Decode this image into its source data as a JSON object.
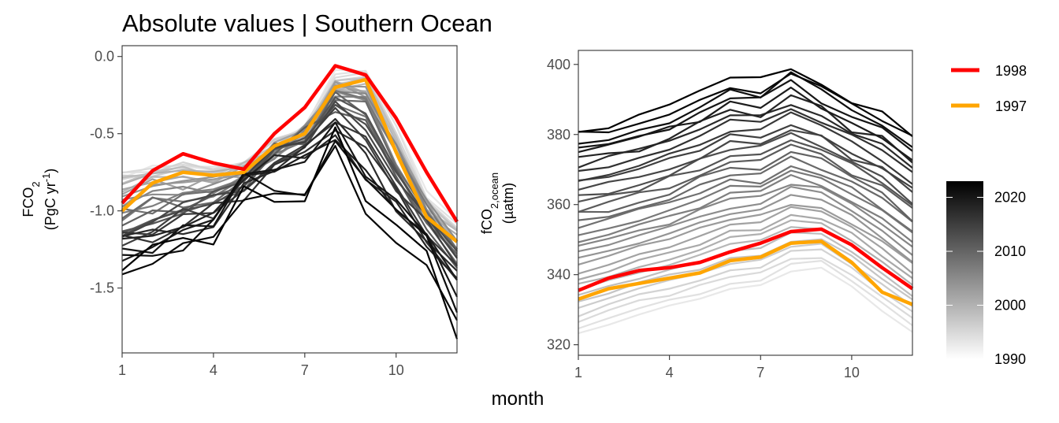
{
  "title": "Absolute values | Southern Ocean",
  "xlabel": "month",
  "legend": {
    "highlight": [
      {
        "name": "1998",
        "color": "#ff0000"
      },
      {
        "name": "1997",
        "color": "#ffa500"
      }
    ],
    "colorbar": {
      "labels": [
        "2020",
        "2010",
        "2000",
        "1990"
      ],
      "values": [
        2020,
        2010,
        2000,
        1990
      ],
      "range": [
        1990,
        2023
      ]
    }
  },
  "chart_data": [
    {
      "type": "line",
      "ylabel_main": "FCO",
      "ylabel_sub": "2",
      "ylabel_unit_pre": "(PgC yr",
      "ylabel_unit_sup": "-1",
      "ylabel_unit_post": ")",
      "xlim": [
        1,
        12
      ],
      "ylim": [
        -1.92,
        0.07
      ],
      "x_ticks": [
        1,
        4,
        7,
        10
      ],
      "x_tick_labels": [
        "1",
        "4",
        "7",
        "10"
      ],
      "y_ticks": [
        0.0,
        -0.5,
        -1.0,
        -1.5
      ],
      "y_tick_labels": [
        "0.0",
        "-0.5",
        "-1.0",
        "-1.5"
      ],
      "x": [
        1,
        2,
        3,
        4,
        5,
        6,
        7,
        8,
        9,
        10,
        11,
        12
      ],
      "background_anchors": {
        "years": [
          1990,
          1996,
          2003,
          2010,
          2016,
          2020,
          2023
        ],
        "profiles": [
          [
            -0.76,
            -0.73,
            -0.7,
            -0.72,
            -0.71,
            -0.55,
            -0.45,
            -0.1,
            -0.11,
            -0.45,
            -0.88,
            -1.07
          ],
          [
            -0.82,
            -0.75,
            -0.73,
            -0.76,
            -0.72,
            -0.58,
            -0.5,
            -0.18,
            -0.16,
            -0.55,
            -0.96,
            -1.15
          ],
          [
            -0.97,
            -0.9,
            -0.88,
            -0.84,
            -0.78,
            -0.62,
            -0.47,
            -0.22,
            -0.25,
            -0.6,
            -0.98,
            -1.25
          ],
          [
            -1.1,
            -1.0,
            -0.96,
            -0.92,
            -0.85,
            -0.63,
            -0.53,
            -0.3,
            -0.4,
            -0.75,
            -1.05,
            -1.3
          ],
          [
            -1.22,
            -1.14,
            -1.07,
            -1.02,
            -0.85,
            -0.64,
            -0.6,
            -0.4,
            -0.62,
            -0.92,
            -1.15,
            -1.4
          ],
          [
            -1.3,
            -1.2,
            -1.17,
            -1.1,
            -0.82,
            -0.72,
            -0.75,
            -0.48,
            -0.82,
            -1.0,
            -1.22,
            -1.5
          ],
          [
            -1.38,
            -1.28,
            -1.22,
            -1.22,
            -0.88,
            -0.92,
            -0.96,
            -0.55,
            -0.99,
            -1.18,
            -1.3,
            -1.85
          ]
        ]
      },
      "series": [
        {
          "name": "1998",
          "color": "#ff0000",
          "values": [
            -0.95,
            -0.74,
            -0.63,
            -0.69,
            -0.73,
            -0.5,
            -0.33,
            -0.06,
            -0.12,
            -0.4,
            -0.75,
            -1.07
          ]
        },
        {
          "name": "1997",
          "color": "#ffa500",
          "values": [
            -1.0,
            -0.82,
            -0.75,
            -0.77,
            -0.75,
            -0.58,
            -0.5,
            -0.2,
            -0.15,
            -0.62,
            -1.04,
            -1.2
          ]
        }
      ]
    },
    {
      "type": "line",
      "ylabel_main": "fCO",
      "ylabel_sub": "2,ocean",
      "ylabel_unit": "(µatm)",
      "xlim": [
        1,
        12
      ],
      "ylim": [
        317,
        404
      ],
      "x_ticks": [
        1,
        4,
        7,
        10
      ],
      "x_tick_labels": [
        "1",
        "4",
        "7",
        "10"
      ],
      "y_ticks": [
        400,
        380,
        360,
        340,
        320
      ],
      "y_tick_labels": [
        "400",
        "380",
        "360",
        "340",
        "320"
      ],
      "x": [
        1,
        2,
        3,
        4,
        5,
        6,
        7,
        8,
        9,
        10,
        11,
        12
      ],
      "background_anchors": {
        "years": [
          1990,
          2023
        ],
        "profiles": [
          [
            323,
            326,
            329,
            331,
            333,
            336,
            337,
            341,
            342,
            337,
            330,
            324
          ],
          [
            382,
            383,
            385,
            388,
            392,
            396,
            395,
            400,
            395,
            390,
            387,
            380
          ]
        ]
      },
      "series": [
        {
          "name": "1998",
          "color": "#ff0000",
          "values": [
            335.5,
            339.0,
            341.2,
            342.0,
            343.5,
            346.5,
            349.0,
            352.3,
            353.0,
            348.5,
            342.0,
            336.0
          ]
        },
        {
          "name": "1997",
          "color": "#ffa500",
          "values": [
            333.0,
            336.0,
            337.5,
            339.0,
            340.5,
            344.0,
            345.0,
            349.0,
            349.5,
            343.5,
            335.0,
            331.5
          ]
        }
      ]
    }
  ]
}
